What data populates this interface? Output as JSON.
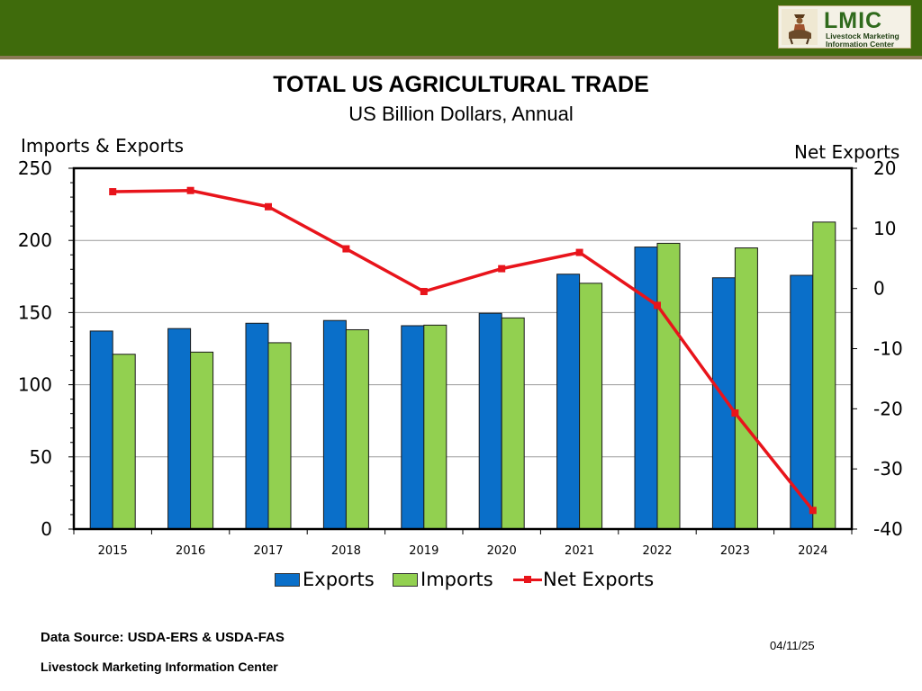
{
  "header": {
    "logo_title": "LMIC",
    "logo_line1": "Livestock Marketing",
    "logo_line2": "Information Center"
  },
  "colors": {
    "exports": "#0a6fc9",
    "imports": "#92d050",
    "net_exports": "#e8141b",
    "header_bar": "#3f6b0c"
  },
  "chart_data": {
    "type": "bar",
    "title": "TOTAL US AGRICULTURAL TRADE",
    "subtitle": "US Billion Dollars, Annual",
    "ylabel": "Imports & Exports",
    "y2label": "Net Exports",
    "categories": [
      "2015",
      "2016",
      "2017",
      "2018",
      "2019",
      "2020",
      "2021",
      "2022",
      "2023",
      "2024"
    ],
    "ylim": [
      0,
      250
    ],
    "yticks": [
      0,
      50,
      100,
      150,
      200,
      250
    ],
    "y2lim": [
      -40,
      20
    ],
    "y2ticks": [
      -40,
      -30,
      -20,
      -10,
      0,
      10,
      20
    ],
    "grid": true,
    "legend_position": "bottom",
    "series": [
      {
        "name": "Exports",
        "type": "bar",
        "axis": "left",
        "values": [
          137.2,
          138.9,
          142.6,
          144.5,
          140.9,
          149.5,
          176.6,
          195.4,
          174.1,
          175.8
        ]
      },
      {
        "name": "Imports",
        "type": "bar",
        "axis": "left",
        "values": [
          121.1,
          122.6,
          129.1,
          138.1,
          141.3,
          146.3,
          170.3,
          198.0,
          194.8,
          212.7
        ]
      },
      {
        "name": "Net Exports",
        "type": "line",
        "axis": "right",
        "values": [
          16.1,
          16.3,
          13.6,
          6.6,
          -0.5,
          3.3,
          6.0,
          -2.8,
          -20.7,
          -36.9
        ]
      }
    ]
  },
  "footer": {
    "source": "Data Source:  USDA-ERS & USDA-FAS",
    "org": "Livestock Marketing Information Center",
    "date": "04/11/25"
  }
}
